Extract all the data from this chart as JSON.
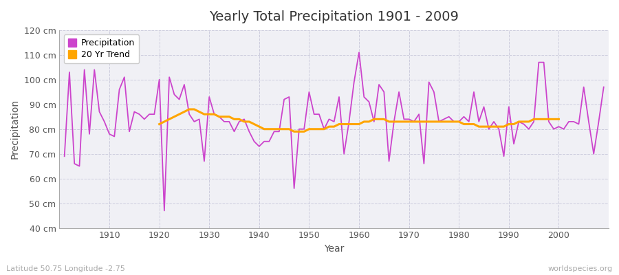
{
  "title": "Yearly Total Precipitation 1901 - 2009",
  "xlabel": "Year",
  "ylabel": "Precipitation",
  "subtitle": "Latitude 50.75 Longitude -2.75",
  "watermark": "worldspecies.org",
  "ylim": [
    40,
    120
  ],
  "ytick_step": 10,
  "years": [
    1901,
    1902,
    1903,
    1904,
    1905,
    1906,
    1907,
    1908,
    1909,
    1910,
    1911,
    1912,
    1913,
    1914,
    1915,
    1916,
    1917,
    1918,
    1919,
    1920,
    1921,
    1922,
    1923,
    1924,
    1925,
    1926,
    1927,
    1928,
    1929,
    1930,
    1931,
    1932,
    1933,
    1934,
    1935,
    1936,
    1937,
    1938,
    1939,
    1940,
    1941,
    1942,
    1943,
    1944,
    1945,
    1946,
    1947,
    1948,
    1949,
    1950,
    1951,
    1952,
    1953,
    1954,
    1955,
    1956,
    1957,
    1958,
    1959,
    1960,
    1961,
    1962,
    1963,
    1964,
    1965,
    1966,
    1967,
    1968,
    1969,
    1970,
    1971,
    1972,
    1973,
    1974,
    1975,
    1976,
    1977,
    1978,
    1979,
    1980,
    1981,
    1982,
    1983,
    1984,
    1985,
    1986,
    1987,
    1988,
    1989,
    1990,
    1991,
    1992,
    1993,
    1994,
    1995,
    1996,
    1997,
    1998,
    1999,
    2000,
    2001,
    2002,
    2003,
    2004,
    2005,
    2006,
    2007,
    2008,
    2009
  ],
  "precipitation": [
    69,
    103,
    66,
    65,
    104,
    78,
    104,
    87,
    83,
    78,
    77,
    96,
    101,
    79,
    87,
    86,
    84,
    86,
    86,
    100,
    47,
    101,
    94,
    92,
    98,
    86,
    83,
    84,
    67,
    93,
    86,
    85,
    83,
    83,
    79,
    83,
    84,
    79,
    75,
    73,
    75,
    75,
    79,
    79,
    92,
    93,
    56,
    80,
    80,
    95,
    86,
    86,
    80,
    84,
    83,
    93,
    70,
    83,
    99,
    111,
    93,
    91,
    83,
    98,
    95,
    67,
    83,
    95,
    84,
    84,
    83,
    86,
    66,
    99,
    95,
    83,
    84,
    85,
    83,
    83,
    85,
    83,
    95,
    83,
    89,
    80,
    83,
    80,
    69,
    89,
    74,
    83,
    82,
    80,
    83,
    107,
    107,
    83,
    80,
    81,
    80,
    83,
    83,
    82,
    97,
    83,
    70,
    83,
    97
  ],
  "trend": [
    null,
    null,
    null,
    null,
    null,
    null,
    null,
    null,
    null,
    null,
    null,
    null,
    null,
    null,
    null,
    null,
    null,
    null,
    null,
    82,
    83,
    84,
    85,
    86,
    87,
    88,
    88,
    87,
    86,
    86,
    86,
    85,
    85,
    85,
    84,
    84,
    83,
    83,
    82,
    81,
    80,
    80,
    80,
    80,
    80,
    80,
    79,
    79,
    79,
    80,
    80,
    80,
    80,
    81,
    81,
    82,
    82,
    82,
    82,
    82,
    83,
    83,
    84,
    84,
    84,
    83,
    83,
    83,
    83,
    83,
    83,
    83,
    83,
    83,
    83,
    83,
    83,
    83,
    83,
    83,
    82,
    82,
    82,
    81,
    81,
    81,
    81,
    81,
    81,
    82,
    82,
    83,
    83,
    83,
    84,
    84,
    84,
    84,
    84,
    84,
    null,
    null,
    null,
    null,
    null,
    null,
    null,
    null,
    null
  ],
  "precip_color": "#CC44CC",
  "trend_color": "#FFA500",
  "bg_color": "#ffffff",
  "plot_bg_color": "#f0f0f5",
  "grid_color": "#ccccdd",
  "grid_style": "--",
  "legend_bg": "#ffffff",
  "subtitle_color": "#aaaaaa",
  "watermark_color": "#aaaaaa"
}
